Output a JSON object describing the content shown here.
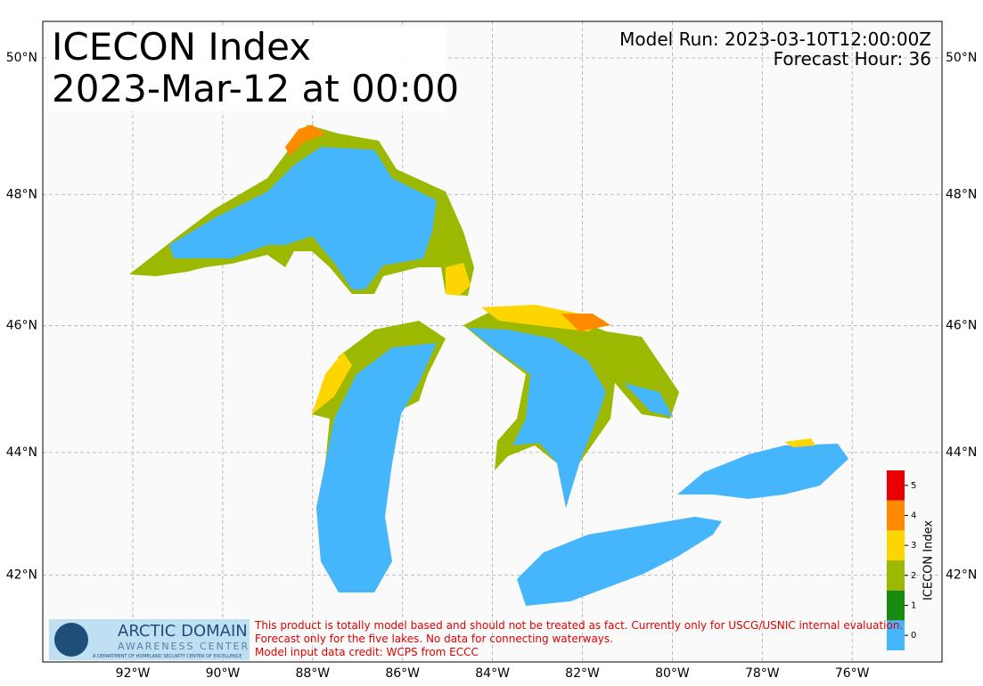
{
  "map": {
    "title": [
      "ICECON Index",
      "2023-Mar-12 at 00:00"
    ],
    "model_run": "Model Run: 2023-03-10T12:00:00Z",
    "forecast_hour": "Forecast Hour: 36",
    "lon_ticks": [
      {
        "value": -92,
        "label": "92°W"
      },
      {
        "value": -90,
        "label": "90°W"
      },
      {
        "value": -88,
        "label": "88°W"
      },
      {
        "value": -86,
        "label": "86°W"
      },
      {
        "value": -84,
        "label": "84°W"
      },
      {
        "value": -82,
        "label": "82°W"
      },
      {
        "value": -80,
        "label": "80°W"
      },
      {
        "value": -78,
        "label": "78°W"
      },
      {
        "value": -76,
        "label": "76°W"
      }
    ],
    "lat_ticks": [
      {
        "value": 50,
        "label": "50°N"
      },
      {
        "value": 48,
        "label": "48°N"
      },
      {
        "value": 46,
        "label": "46°N"
      },
      {
        "value": 44,
        "label": "44°N"
      },
      {
        "value": 42,
        "label": "42°N"
      }
    ],
    "colorbar": {
      "label": "ICECON Index",
      "ticks": [
        0,
        1,
        2,
        3,
        4,
        5
      ],
      "colors": [
        "#45b6fb",
        "#188a10",
        "#9cb800",
        "#ffd500",
        "#ff8a00",
        "#e80000"
      ]
    },
    "logo": {
      "line1": "ARCTIC DOMAIN",
      "line2": "AWARENESS CENTER",
      "line3": "A DEPARTMENT OF HOMELAND SECURITY CENTER OF EXCELLENCE"
    },
    "disclaimer": [
      "This product is totally model based and should not be treated as fact. Currently only for USCG/USNIC internal evaluation.",
      "Forecast only for the five lakes. No data for connecting waterways.",
      "Model input data credit: WCPS from ECCC"
    ]
  }
}
